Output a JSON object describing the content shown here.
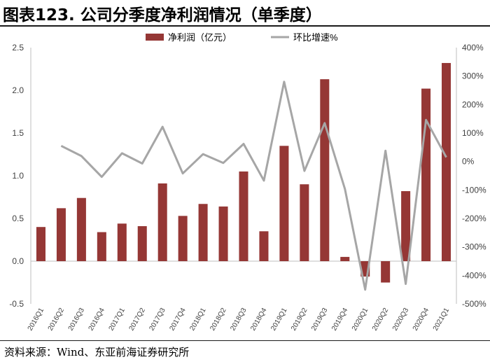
{
  "header": {
    "title": "图表123. 公司分季度净利润情况（单季度）"
  },
  "footer": {
    "source": "资料来源：Wind、东亚前海证券研究所"
  },
  "chart_data": {
    "type": "bar",
    "categories": [
      "2016Q1",
      "2016Q2",
      "2016Q3",
      "2016Q4",
      "2017Q1",
      "2017Q2",
      "2017Q3",
      "2017Q4",
      "2018Q1",
      "2018Q2",
      "2018Q3",
      "2018Q4",
      "2019Q1",
      "2019Q2",
      "2019Q3",
      "2019Q4",
      "2020Q1",
      "2020Q2",
      "2020Q3",
      "2020Q4",
      "2021Q1"
    ],
    "series": [
      {
        "name": "净利润（亿元）",
        "kind": "bar",
        "axis": "left",
        "color": "#953735",
        "values": [
          0.4,
          0.62,
          0.74,
          0.34,
          0.44,
          0.41,
          0.91,
          0.53,
          0.67,
          0.64,
          1.05,
          0.35,
          1.35,
          0.9,
          2.13,
          0.05,
          -0.18,
          -0.25,
          0.82,
          2.02,
          2.32
        ]
      },
      {
        "name": "环比增速%",
        "kind": "line",
        "axis": "right",
        "color": "#a6a6a6",
        "values": [
          null,
          55,
          19,
          -54,
          29,
          -7,
          122,
          -42,
          26,
          -5,
          62,
          -67,
          280,
          -33,
          135,
          -97,
          -450,
          38,
          -430,
          146,
          15
        ]
      }
    ],
    "left_axis": {
      "min": -0.5,
      "max": 2.5,
      "step": 0.5,
      "ticks": [
        "-0.5",
        "0.0",
        "0.5",
        "1.0",
        "1.5",
        "2.0",
        "2.5"
      ]
    },
    "right_axis": {
      "min": -500,
      "max": 400,
      "step": 100,
      "ticks": [
        "-500%",
        "-400%",
        "-300%",
        "-200%",
        "-100%",
        "0%",
        "100%",
        "200%",
        "300%",
        "400%"
      ]
    },
    "legend_position": "top",
    "grid": false
  }
}
